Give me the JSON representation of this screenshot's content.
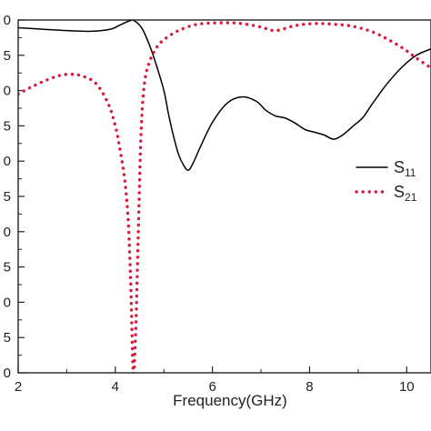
{
  "chart_data": {
    "type": "line",
    "xlabel": "Frequency(GHz)",
    "ylabel": "",
    "xlim": [
      2,
      10.5
    ],
    "ylim": [
      -50,
      0
    ],
    "x_ticks": [
      2,
      4,
      6,
      8,
      10
    ],
    "x_tick_labels": [
      "2",
      "4",
      "6",
      "8",
      "10"
    ],
    "y_ticks": [
      0,
      -5,
      -10,
      -15,
      -20,
      -25,
      -30,
      -35,
      -40,
      -45,
      -50
    ],
    "y_tick_labels_visible": [
      "0",
      "5",
      "0",
      "5",
      "0",
      "5",
      "0",
      "5",
      "0",
      "5",
      "0"
    ],
    "grid": false,
    "legend_position": "right",
    "series": [
      {
        "name": "S",
        "subscript": "11",
        "style": "solid",
        "color": "#000000",
        "x": [
          2.0,
          2.5,
          3.0,
          3.5,
          3.9,
          4.1,
          4.3,
          4.4,
          4.55,
          4.7,
          4.85,
          5.0,
          5.1,
          5.2,
          5.3,
          5.4,
          5.5,
          5.6,
          5.75,
          6.0,
          6.3,
          6.6,
          6.9,
          7.1,
          7.3,
          7.5,
          7.7,
          7.9,
          8.1,
          8.3,
          8.5,
          8.7,
          8.9,
          9.1,
          9.3,
          9.6,
          9.9,
          10.2,
          10.5
        ],
        "y": [
          -1.1,
          -1.3,
          -1.5,
          -1.6,
          -1.3,
          -0.7,
          -0.1,
          -0.15,
          -1.2,
          -3.5,
          -6.5,
          -10.0,
          -13.5,
          -16.5,
          -19.0,
          -20.5,
          -21.3,
          -20.3,
          -18.0,
          -14.5,
          -11.8,
          -10.9,
          -11.5,
          -12.8,
          -13.6,
          -13.9,
          -14.6,
          -15.5,
          -15.9,
          -16.3,
          -16.9,
          -16.2,
          -15.0,
          -13.8,
          -11.8,
          -9.0,
          -6.7,
          -5.0,
          -4.1
        ]
      },
      {
        "name": "S",
        "subscript": "21",
        "style": "dotted",
        "color": "#d81b3c",
        "x": [
          2.0,
          2.3,
          2.7,
          3.0,
          3.3,
          3.6,
          3.85,
          4.0,
          4.1,
          4.2,
          4.27,
          4.32,
          4.37,
          4.42,
          4.47,
          4.53,
          4.6,
          4.7,
          4.85,
          5.0,
          5.3,
          5.7,
          6.2,
          6.6,
          7.0,
          7.3,
          7.7,
          8.1,
          8.5,
          8.9,
          9.3,
          9.6,
          9.9,
          10.2,
          10.5
        ],
        "y": [
          -10.5,
          -9.4,
          -8.2,
          -7.7,
          -7.9,
          -9.0,
          -11.8,
          -15.0,
          -18.5,
          -23.0,
          -29.0,
          -38.0,
          -50.0,
          -44.0,
          -31.0,
          -16.0,
          -9.0,
          -6.0,
          -3.9,
          -2.8,
          -1.5,
          -0.6,
          -0.4,
          -0.5,
          -1.0,
          -1.5,
          -0.8,
          -0.5,
          -0.6,
          -0.9,
          -1.7,
          -2.7,
          -3.9,
          -5.4,
          -6.8
        ]
      }
    ]
  }
}
